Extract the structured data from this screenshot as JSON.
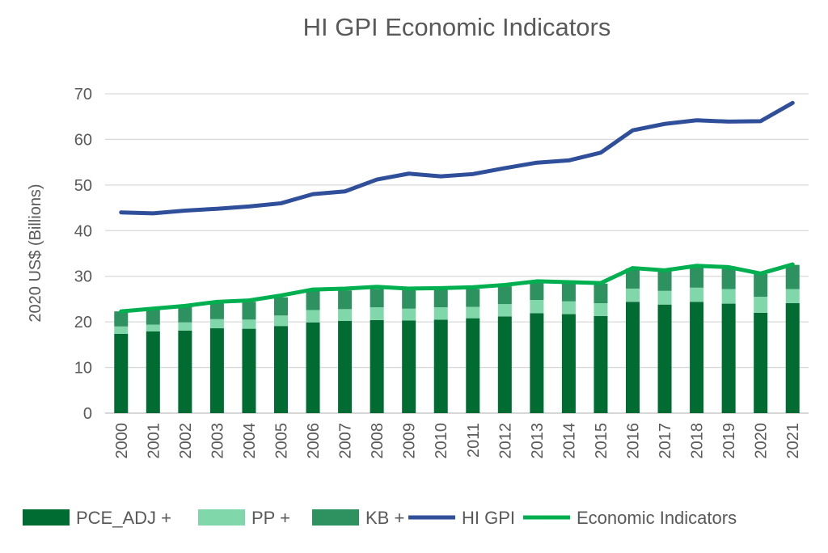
{
  "chart_data": {
    "type": "bar",
    "stacked": true,
    "title": "HI GPI Economic Indicators",
    "xlabel": "",
    "ylabel": "2020 US$ (Billions)",
    "ylim": [
      0,
      70
    ],
    "yticks": [
      0,
      10,
      20,
      30,
      40,
      50,
      60,
      70
    ],
    "grid": true,
    "legend_position": "bottom",
    "categories": [
      "2000",
      "2001",
      "2002",
      "2003",
      "2004",
      "2005",
      "2006",
      "2007",
      "2008",
      "2009",
      "2010",
      "2011",
      "2012",
      "2013",
      "2014",
      "2015",
      "2016",
      "2017",
      "2018",
      "2019",
      "2020",
      "2021"
    ],
    "series": [
      {
        "name": "PCE_ADJ +",
        "kind": "bar",
        "color": "#006C31",
        "values": [
          17.4,
          17.9,
          18.1,
          18.6,
          18.5,
          19.1,
          19.9,
          20.2,
          20.4,
          20.3,
          20.5,
          20.8,
          21.2,
          21.9,
          21.7,
          21.3,
          24.4,
          23.8,
          24.4,
          24.0,
          22.0,
          24.1
        ]
      },
      {
        "name": "PP +",
        "kind": "bar",
        "color": "#80D8AA",
        "values": [
          1.6,
          1.5,
          1.8,
          2.0,
          2.0,
          2.3,
          2.7,
          2.6,
          2.8,
          2.6,
          2.7,
          2.5,
          2.7,
          2.9,
          2.8,
          2.8,
          2.9,
          3.0,
          3.1,
          3.2,
          3.5,
          3.1
        ]
      },
      {
        "name": "KB +",
        "kind": "bar",
        "color": "#2E9160",
        "values": [
          3.3,
          3.2,
          3.4,
          3.5,
          3.9,
          4.0,
          4.3,
          4.1,
          4.0,
          4.2,
          3.9,
          3.9,
          3.9,
          3.9,
          3.9,
          4.3,
          4.4,
          4.6,
          4.8,
          5.0,
          5.0,
          5.3
        ]
      },
      {
        "name": "HI GPI",
        "kind": "line",
        "color": "#2F4F9A",
        "values": [
          44.0,
          43.8,
          44.4,
          44.8,
          45.3,
          46.0,
          48.0,
          48.6,
          51.2,
          52.5,
          51.9,
          52.4,
          53.7,
          54.9,
          55.4,
          57.1,
          62.0,
          63.4,
          64.2,
          63.9,
          64.0,
          68.0
        ]
      },
      {
        "name": "Economic Indicators",
        "kind": "line",
        "color": "#00B050",
        "values": [
          22.3,
          22.9,
          23.5,
          24.4,
          24.7,
          25.8,
          27.1,
          27.3,
          27.7,
          27.3,
          27.4,
          27.6,
          28.1,
          28.9,
          28.7,
          28.5,
          31.8,
          31.3,
          32.3,
          32.0,
          30.6,
          32.6
        ]
      }
    ]
  }
}
